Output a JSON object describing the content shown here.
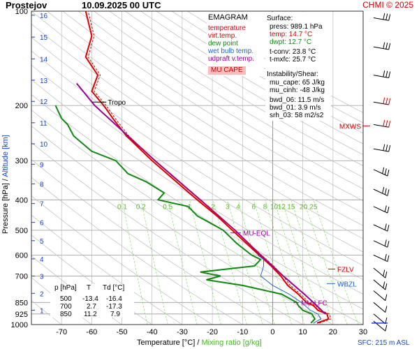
{
  "header": {
    "station": "Prostejov",
    "datetime": "10.09.2025 00 UTC",
    "credit": "CHMI © 2025"
  },
  "legend": {
    "title": "EMAGRAM",
    "items": [
      {
        "label": "temperature",
        "color": "#dd0000"
      },
      {
        "label": "virt.temp.",
        "color": "#dd0000"
      },
      {
        "label": "dew point",
        "color": "#118811"
      },
      {
        "label": "wet bulb temp.",
        "color": "#2266cc"
      },
      {
        "label": "udpraft v.temp.",
        "color": "#990099"
      }
    ],
    "badge": "MU CAPE",
    "badge_color": "#ffbbbb"
  },
  "surface": {
    "title": "Surface:",
    "press": "press: 989.1 hPa",
    "temp": "temp: 14.7 °C",
    "dwpt": "dwpt: 12.7 °C",
    "tconv": "t-conv: 23.8 °C",
    "tmxfc": "t-mxfc: 25.7 °C"
  },
  "instability": {
    "title": "Instability/Shear:",
    "mu_cape": "mu_cape: 65 J/kg",
    "mu_cinh": "mu_cinh: -48 J/kg",
    "bwd_06": "bwd_06: 11.5 m/s",
    "bwd_01": "bwd_01: 3.9 m/s",
    "srh_03": "srh_03: 58 m2/s2"
  },
  "table": {
    "headers": [
      "p [hPa]",
      "T",
      "Td [°C]"
    ],
    "rows": [
      [
        "500",
        "-13.4",
        "-16.4"
      ],
      [
        "700",
        "2.7",
        "-17.3"
      ],
      [
        "850",
        "11.2",
        "7.9"
      ]
    ]
  },
  "chart_data": {
    "type": "line",
    "xlabel": "Temperature [°C]",
    "xlabel_sep": "/",
    "xlabel2": "Mixing ratio [g/kg]",
    "ylabel": "Pressure [hPa]",
    "ylabel_sep": "/",
    "ylabel2": "Altitude [km]",
    "sfc_label": "SFC: 215 m ASL",
    "xlim": [
      -80,
      30
    ],
    "ylim": [
      1000,
      100
    ],
    "x_ticks": [
      -70,
      -60,
      -50,
      -40,
      -30,
      -20,
      -10,
      0,
      10,
      20,
      30
    ],
    "pressure_ticks": [
      100,
      200,
      300,
      400,
      500,
      600,
      700,
      850,
      925,
      1000
    ],
    "altitude_ticks": [
      1,
      2,
      3,
      4,
      5,
      6,
      7,
      8,
      9,
      10,
      11,
      12,
      13,
      14,
      15,
      16
    ],
    "mixing_ratio_lines": [
      "0.1",
      "0.2",
      "0.5",
      "1",
      "2",
      "3",
      "4",
      "6",
      "8",
      "10",
      "12",
      "15",
      "20",
      "25"
    ],
    "levels": [
      {
        "name": "Tropo",
        "p": 195,
        "T": -57
      },
      {
        "name": "MXWS",
        "p": 230
      },
      {
        "name": "MU-EQL",
        "p": 510
      },
      {
        "name": "FZLV",
        "p": 665
      },
      {
        "name": "WBZL",
        "p": 740
      },
      {
        "name": "MU-LFC",
        "p": 850
      }
    ],
    "series": [
      {
        "name": "temperature",
        "color": "#dd0000",
        "p": [
          989,
          960,
          925,
          900,
          870,
          850,
          800,
          750,
          700,
          650,
          600,
          550,
          500,
          450,
          400,
          350,
          300,
          250,
          220,
          200,
          195,
          180,
          160,
          140,
          120,
          100
        ],
        "T": [
          14.7,
          18.5,
          18.0,
          15.0,
          13.5,
          11.2,
          8.5,
          5.0,
          2.7,
          -0.5,
          -4.5,
          -8.8,
          -13.4,
          -18.5,
          -25.0,
          -32.0,
          -40.0,
          -48.5,
          -53.0,
          -56.0,
          -57.0,
          -60.0,
          -58.0,
          -62.0,
          -60.0,
          -62.0
        ]
      },
      {
        "name": "dew point",
        "color": "#118811",
        "p": [
          989,
          960,
          925,
          900,
          870,
          850,
          800,
          750,
          720,
          700,
          680,
          650,
          620,
          600,
          550,
          500,
          450,
          420,
          400,
          380,
          350,
          330,
          300,
          280,
          250,
          230,
          220,
          200
        ],
        "T": [
          12.7,
          14.0,
          13.0,
          10.0,
          8.5,
          7.9,
          3.0,
          -10.0,
          -22.0,
          -17.3,
          -24.0,
          -6.0,
          -4.0,
          -7.0,
          -12.0,
          -16.4,
          -25.0,
          -28.0,
          -38.0,
          -36.0,
          -42.0,
          -48.0,
          -52.0,
          -60.0,
          -66.0,
          -68.0,
          -70.0,
          -72.0
        ]
      },
      {
        "name": "wet bulb temp.",
        "color": "#2266cc",
        "p": [
          989,
          960,
          925,
          900,
          850,
          800,
          750,
          700,
          650,
          620,
          600
        ],
        "T": [
          13.5,
          16.0,
          15.0,
          12.5,
          9.5,
          5.5,
          0.0,
          -4.0,
          -3.0,
          -3.0,
          -5.0
        ]
      },
      {
        "name": "udpraft v.temp.",
        "color": "#990099",
        "p": [
          925,
          850,
          800,
          700,
          600,
          500,
          400,
          300,
          250,
          200,
          170
        ],
        "T": [
          17.5,
          13.5,
          10.5,
          3.5,
          -4.0,
          -12.5,
          -24.0,
          -39.0,
          -48.0,
          -59.0,
          -65.0
        ]
      }
    ]
  }
}
